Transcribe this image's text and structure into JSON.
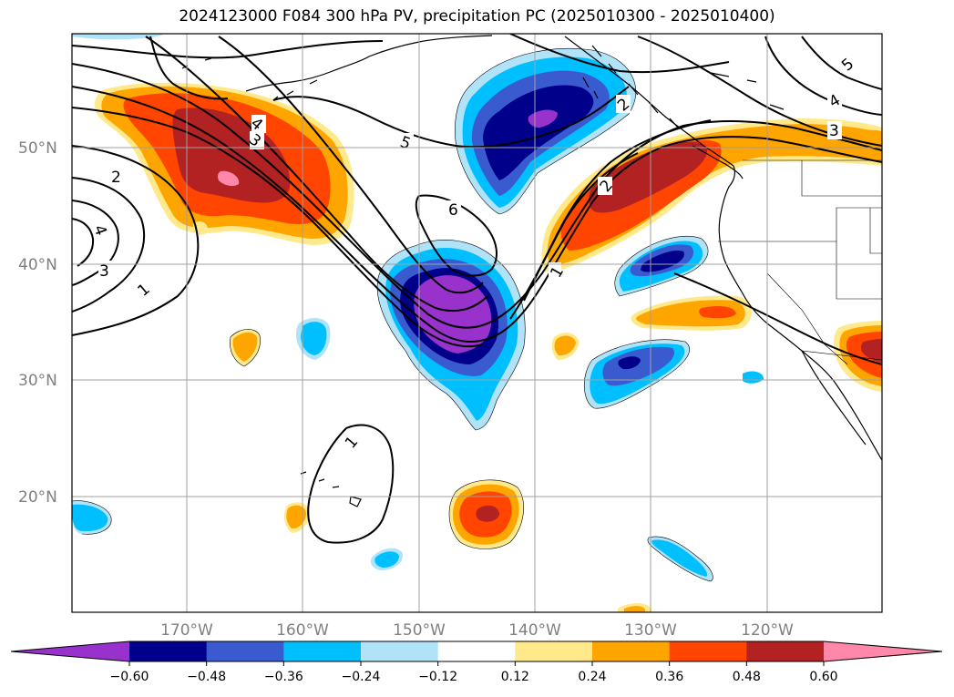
{
  "title": "2024123000 F084 300 hPa PV, precipitation PC (2025010300 - 2025010400)",
  "lat_labels": [
    "50°N",
    "40°N",
    "30°N",
    "20°N"
  ],
  "lon_labels": [
    "170°W",
    "160°W",
    "150°W",
    "140°W",
    "130°W",
    "120°W"
  ],
  "pv_contour_labels": [
    "1",
    "2",
    "3",
    "4",
    "5",
    "6",
    "1",
    "2",
    "3",
    "4",
    "5",
    "4",
    "3",
    "2",
    "1"
  ],
  "colorbar": {
    "ticks": [
      "−0.60",
      "−0.48",
      "−0.36",
      "−0.24",
      "−0.12",
      "0.12",
      "0.24",
      "0.36",
      "0.48",
      "0.60"
    ],
    "colors": [
      "#9932cc",
      "#00008b",
      "#3a5bcf",
      "#00bfff",
      "#b0e2f8",
      "#ffffff",
      "#ffe98a",
      "#ffa500",
      "#ff4500",
      "#b22222",
      "#ff88aa"
    ]
  },
  "colors": {
    "neg_strong": "#9932cc",
    "neg_navy": "#00008b",
    "neg_blue": "#3a5bcf",
    "neg_sky": "#00bfff",
    "neg_light": "#b0e2f8",
    "pos_yellow": "#ffe98a",
    "pos_orange": "#ffa500",
    "pos_redorange": "#ff4500",
    "pos_firebrick": "#b22222",
    "pos_pink": "#ff88aa"
  }
}
